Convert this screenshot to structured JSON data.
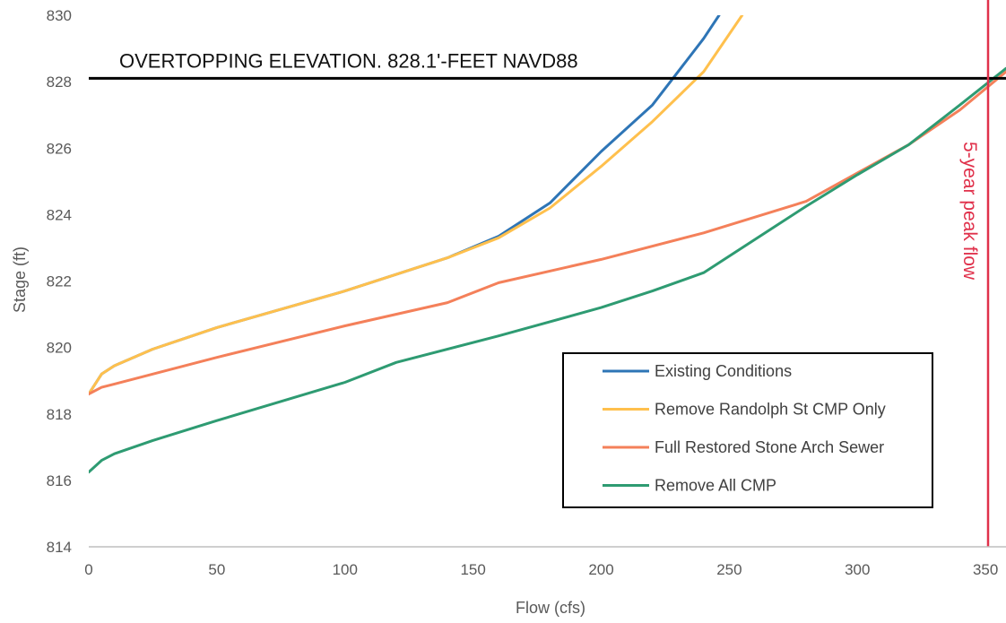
{
  "chart_data": {
    "type": "line",
    "title": "",
    "xlabel": "Flow (cfs)",
    "ylabel": "Stage (ft)",
    "xlim": [
      0,
      358
    ],
    "ylim": [
      814,
      830
    ],
    "x_ticks": [
      0,
      50,
      100,
      150,
      200,
      250,
      300,
      350
    ],
    "y_ticks": [
      814,
      816,
      818,
      820,
      822,
      824,
      826,
      828,
      830
    ],
    "grid": false,
    "legend_position": "bottom-right",
    "series": [
      {
        "name": "Existing Conditions",
        "color": "#2e75b6",
        "points": [
          [
            0,
            818.6
          ],
          [
            5,
            819.2
          ],
          [
            10,
            819.45
          ],
          [
            25,
            819.95
          ],
          [
            50,
            820.6
          ],
          [
            100,
            821.7
          ],
          [
            140,
            822.7
          ],
          [
            160,
            823.35
          ],
          [
            180,
            824.35
          ],
          [
            200,
            825.9
          ],
          [
            220,
            827.3
          ],
          [
            240,
            829.3
          ],
          [
            246,
            830.0
          ]
        ]
      },
      {
        "name": "Remove Randolph St CMP Only",
        "color": "#ffc04d",
        "points": [
          [
            0,
            818.6
          ],
          [
            5,
            819.2
          ],
          [
            10,
            819.45
          ],
          [
            25,
            819.95
          ],
          [
            50,
            820.6
          ],
          [
            100,
            821.7
          ],
          [
            140,
            822.7
          ],
          [
            160,
            823.3
          ],
          [
            180,
            824.2
          ],
          [
            200,
            825.45
          ],
          [
            220,
            826.8
          ],
          [
            240,
            828.3
          ],
          [
            255,
            830.0
          ]
        ]
      },
      {
        "name": "Full Restored Stone Arch Sewer",
        "color": "#f4805a",
        "points": [
          [
            0,
            818.6
          ],
          [
            5,
            818.8
          ],
          [
            10,
            818.9
          ],
          [
            50,
            819.7
          ],
          [
            100,
            820.65
          ],
          [
            140,
            821.35
          ],
          [
            160,
            821.95
          ],
          [
            200,
            822.65
          ],
          [
            240,
            823.45
          ],
          [
            280,
            824.4
          ],
          [
            300,
            825.25
          ],
          [
            320,
            826.1
          ],
          [
            340,
            827.15
          ],
          [
            358,
            828.3
          ]
        ]
      },
      {
        "name": "Remove All CMP",
        "color": "#2e9b72",
        "points": [
          [
            0,
            816.25
          ],
          [
            5,
            816.6
          ],
          [
            10,
            816.8
          ],
          [
            25,
            817.2
          ],
          [
            50,
            817.8
          ],
          [
            100,
            818.95
          ],
          [
            120,
            819.55
          ],
          [
            160,
            820.35
          ],
          [
            200,
            821.2
          ],
          [
            220,
            821.7
          ],
          [
            240,
            822.25
          ],
          [
            280,
            824.25
          ],
          [
            300,
            825.2
          ],
          [
            320,
            826.1
          ],
          [
            340,
            827.3
          ],
          [
            358,
            828.4
          ]
        ]
      }
    ],
    "reference_lines": [
      {
        "orientation": "horizontal",
        "y": 828.1,
        "label": "OVERTOPPING ELEVATION. 828.1'-FEET NAVD88",
        "color": "#000000"
      },
      {
        "orientation": "vertical",
        "x": 351,
        "label": "5-year peak flow",
        "color": "#e0314b"
      }
    ]
  }
}
